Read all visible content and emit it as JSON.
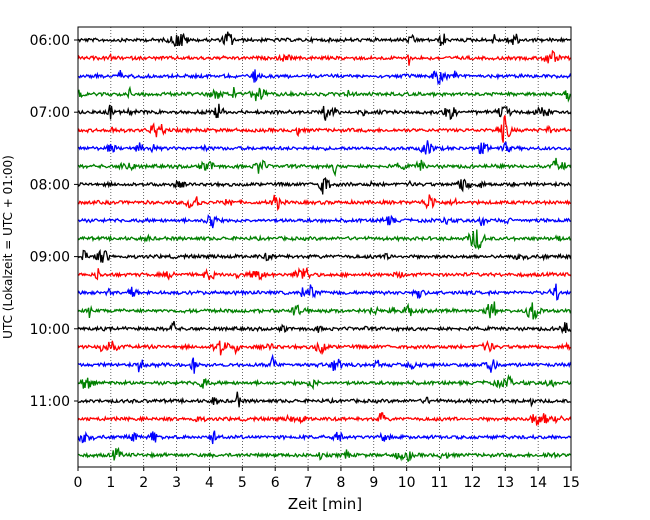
{
  "chart_data": {
    "type": "line",
    "title": "",
    "xlabel": "Zeit  [min]",
    "ylabel": "UTC (Lokalzeit = UTC + 01:00)",
    "xlim": [
      0,
      15
    ],
    "x_ticks": [
      "0",
      "1",
      "2",
      "3",
      "4",
      "5",
      "6",
      "7",
      "8",
      "9",
      "10",
      "11",
      "12",
      "13",
      "14",
      "15"
    ],
    "y_ticks": [
      "06:00",
      "07:00",
      "08:00",
      "09:00",
      "10:00",
      "11:00"
    ],
    "grid": "vertical dotted",
    "trace_interval_min": 15,
    "color_cycle": [
      "#000000",
      "#ff0000",
      "#0000ff",
      "#008000"
    ],
    "series": [
      {
        "start": "06:00",
        "color": "#000000"
      },
      {
        "start": "06:15",
        "color": "#ff0000"
      },
      {
        "start": "06:30",
        "color": "#0000ff"
      },
      {
        "start": "06:45",
        "color": "#008000"
      },
      {
        "start": "07:00",
        "color": "#000000"
      },
      {
        "start": "07:15",
        "color": "#ff0000"
      },
      {
        "start": "07:30",
        "color": "#0000ff"
      },
      {
        "start": "07:45",
        "color": "#008000"
      },
      {
        "start": "08:00",
        "color": "#000000"
      },
      {
        "start": "08:15",
        "color": "#ff0000"
      },
      {
        "start": "08:30",
        "color": "#0000ff"
      },
      {
        "start": "08:45",
        "color": "#008000"
      },
      {
        "start": "09:00",
        "color": "#000000"
      },
      {
        "start": "09:15",
        "color": "#ff0000"
      },
      {
        "start": "09:30",
        "color": "#0000ff"
      },
      {
        "start": "09:45",
        "color": "#008000"
      },
      {
        "start": "10:00",
        "color": "#000000"
      },
      {
        "start": "10:15",
        "color": "#ff0000"
      },
      {
        "start": "10:30",
        "color": "#0000ff"
      },
      {
        "start": "10:45",
        "color": "#008000"
      },
      {
        "start": "11:00",
        "color": "#000000"
      },
      {
        "start": "11:15",
        "color": "#ff0000"
      },
      {
        "start": "11:30",
        "color": "#0000ff"
      },
      {
        "start": "11:45",
        "color": "#008000"
      }
    ]
  }
}
